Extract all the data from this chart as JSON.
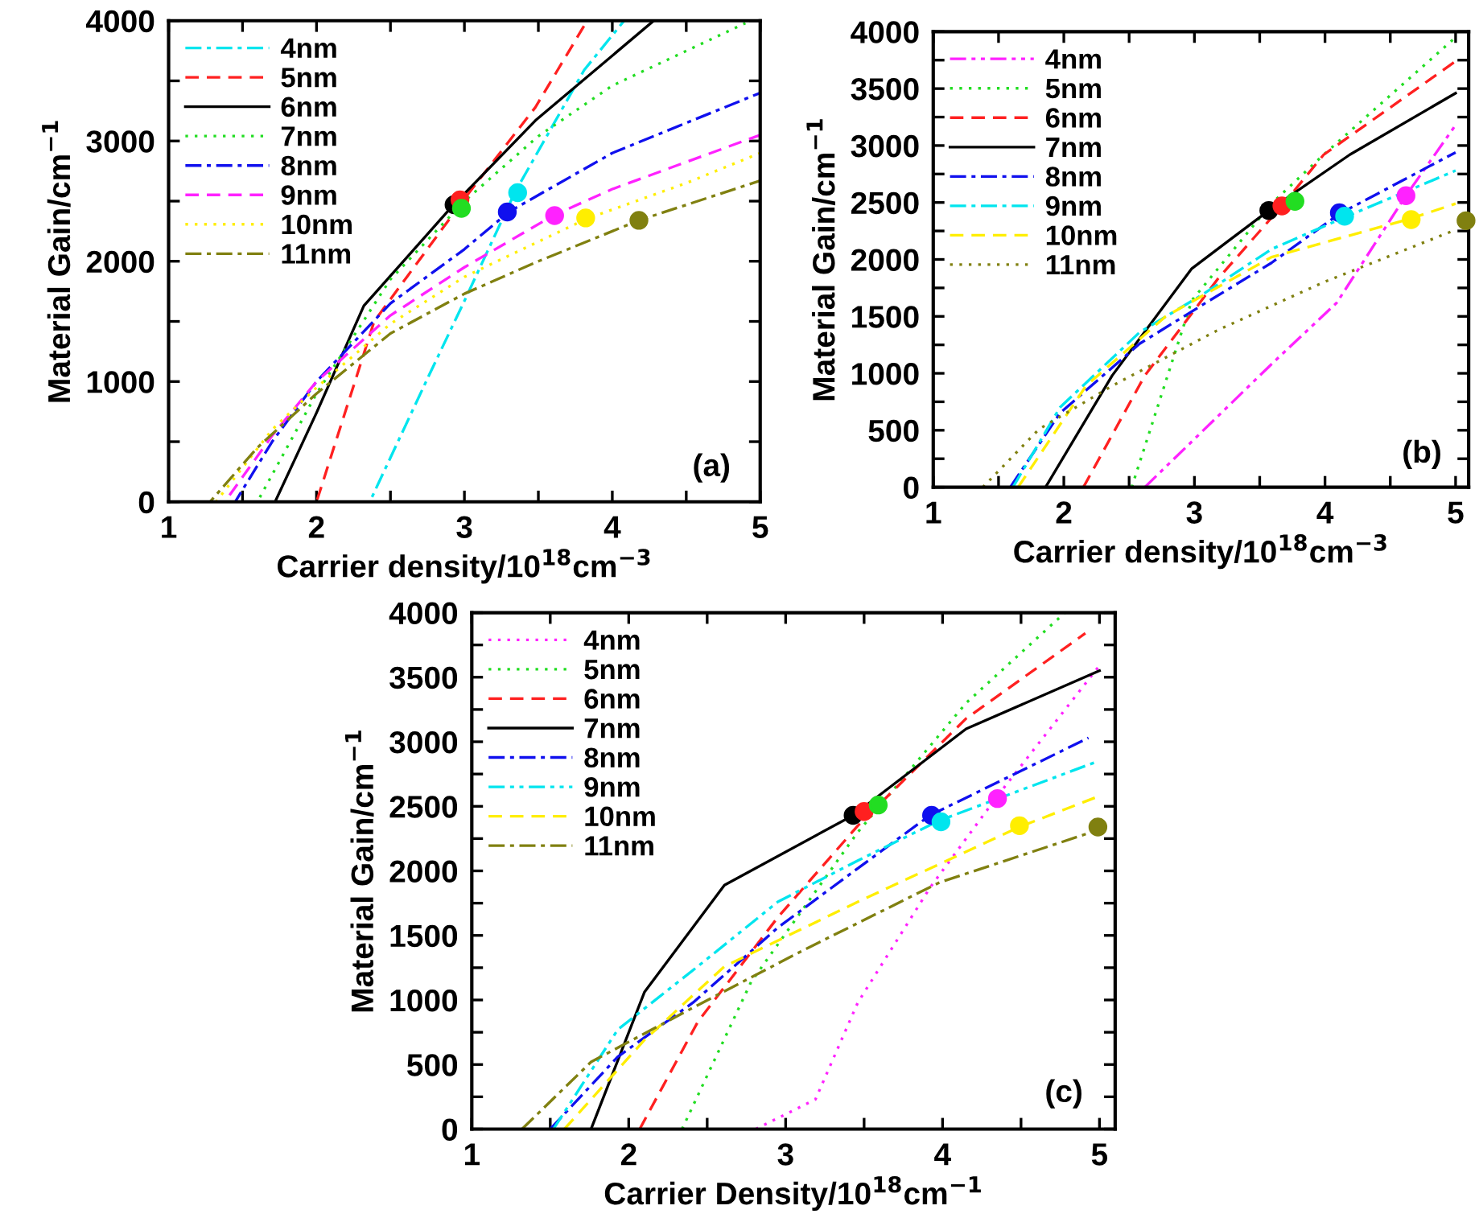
{
  "chart_data": [
    {
      "type": "line",
      "xlabel": "Carrier density/10$^{18}$cm$^{−3}$",
      "ylabel": "Material Gain/cm$^{−1}$",
      "annotations": [
        "(a)"
      ],
      "xlim": [
        1,
        5
      ],
      "ylim": [
        0,
        4000
      ],
      "xticks": [
        1,
        {
          "value": 1.5,
          "label": null
        },
        2,
        {
          "value": 2.5,
          "label": null
        },
        3,
        {
          "value": 3.5,
          "label": null
        },
        4,
        {
          "value": 4.5,
          "label": null
        },
        5
      ],
      "yticks": [
        0,
        {
          "value": 500,
          "label": null
        },
        1000,
        {
          "value": 1500,
          "label": null
        },
        2000,
        {
          "value": 2500,
          "label": null
        },
        3000,
        {
          "value": 3500,
          "label": null
        },
        4000
      ],
      "legend": "top left",
      "grid": false,
      "series": [
        {
          "name": "4nm",
          "color": "#00e5ee",
          "line_style": "dashdot",
          "x": [
            1,
            2.36,
            2.76,
            3.0,
            3.34,
            3.81,
            4.08
          ],
          "values": [
            0,
            0,
            1050,
            1670,
            2570,
            3590,
            4000
          ]
        },
        {
          "name": "5nm",
          "color": "#ff2020",
          "line_style": "dashed",
          "x": [
            1,
            2.0,
            2.39,
            3.0,
            3.48,
            3.83
          ],
          "values": [
            0,
            0,
            1500,
            2520,
            3280,
            4000
          ]
        },
        {
          "name": "6nm",
          "color": "#000000",
          "line_style": "solid",
          "x": [
            1,
            1.72,
            2.0,
            2.32,
            2.92,
            3.48,
            4.28
          ],
          "values": [
            0,
            0,
            740,
            1630,
            2460,
            3170,
            4000
          ]
        },
        {
          "name": "7nm",
          "color": "#22dd22",
          "line_style": "dotted",
          "x": [
            1,
            1.6,
            2.0,
            2.5,
            3.0,
            3.5,
            4.0,
            4.9
          ],
          "values": [
            0,
            0,
            900,
            1850,
            2500,
            3040,
            3460,
            3980
          ]
        },
        {
          "name": "8nm",
          "color": "#1010ee",
          "line_style": "dashdot",
          "x": [
            1,
            1.45,
            1.7,
            2.0,
            2.5,
            3.0,
            3.3,
            4.0,
            5.0
          ],
          "values": [
            0,
            0,
            500,
            1000,
            1650,
            2100,
            2410,
            2900,
            3400
          ]
        },
        {
          "name": "9nm",
          "color": "#ff22ff",
          "line_style": "dashed",
          "x": [
            1,
            1.38,
            1.7,
            2.0,
            2.5,
            3.0,
            3.6,
            4.0,
            5.0
          ],
          "values": [
            0,
            0,
            550,
            1000,
            1550,
            1950,
            2380,
            2600,
            3050
          ]
        },
        {
          "name": "10nm",
          "color": "#ffee00",
          "line_style": "dotted",
          "x": [
            1,
            1.32,
            1.7,
            2.0,
            2.5,
            3.0,
            3.82,
            4.5,
            5.0
          ],
          "values": [
            0,
            0,
            600,
            950,
            1480,
            1870,
            2350,
            2650,
            2900
          ]
        },
        {
          "name": "11nm",
          "color": "#808010",
          "line_style": "dashdot",
          "x": [
            1,
            1.28,
            1.6,
            2.0,
            2.5,
            3.0,
            3.5,
            4.18,
            5.0
          ],
          "values": [
            0,
            0,
            450,
            900,
            1400,
            1730,
            2000,
            2340,
            2670
          ]
        },
        {
          "type": "scatter",
          "marker": "circle",
          "color": "#000000",
          "x": [
            2.93
          ],
          "values": [
            2470
          ]
        },
        {
          "type": "scatter",
          "marker": "circle",
          "color": "#ff2020",
          "x": [
            2.97
          ],
          "values": [
            2510
          ]
        },
        {
          "type": "scatter",
          "marker": "circle",
          "color": "#22dd22",
          "x": [
            2.98
          ],
          "values": [
            2440
          ]
        },
        {
          "type": "scatter",
          "marker": "circle",
          "color": "#00e5ee",
          "x": [
            3.36
          ],
          "values": [
            2570
          ]
        },
        {
          "type": "scatter",
          "marker": "circle",
          "color": "#1010ee",
          "x": [
            3.29
          ],
          "values": [
            2410
          ]
        },
        {
          "type": "scatter",
          "marker": "circle",
          "color": "#ff22ff",
          "x": [
            3.61
          ],
          "values": [
            2380
          ]
        },
        {
          "type": "scatter",
          "marker": "circle",
          "color": "#ffee00",
          "x": [
            3.82
          ],
          "values": [
            2360
          ]
        },
        {
          "type": "scatter",
          "marker": "circle",
          "color": "#808010",
          "x": [
            4.18
          ],
          "values": [
            2340
          ]
        }
      ]
    },
    {
      "type": "line",
      "xlabel": "Carrier density/10$^{18}$cm$^{−3}$",
      "ylabel": "Material Gain/cm$^{−1}$",
      "annotations": [
        "(b)"
      ],
      "xlim": [
        1,
        5.1
      ],
      "ylim": [
        0,
        4000
      ],
      "xticks": [
        1,
        {
          "value": 1.5,
          "label": null
        },
        2,
        {
          "value": 2.5,
          "label": null
        },
        3,
        {
          "value": 3.5,
          "label": null
        },
        4,
        {
          "value": 4.5,
          "label": null
        },
        5
      ],
      "yticks": [
        0,
        {
          "value": 250,
          "label": null
        },
        500,
        {
          "value": 750,
          "label": null
        },
        1000,
        {
          "value": 1250,
          "label": null
        },
        1500,
        {
          "value": 1750,
          "label": null
        },
        2000,
        {
          "value": 2250,
          "label": null
        },
        2500,
        {
          "value": 2750,
          "label": null
        },
        3000,
        {
          "value": 3250,
          "label": null
        },
        3500,
        {
          "value": 3750,
          "label": null
        },
        4000
      ],
      "legend": "top left",
      "grid": false,
      "series": [
        {
          "name": "4nm",
          "color": "#ff22ff",
          "line_style": "dashdotdot",
          "x": [
            2.62,
            3.59,
            4.09,
            4.62,
            5.0
          ],
          "values": [
            0,
            1080,
            1620,
            2560,
            3180
          ]
        },
        {
          "name": "5nm",
          "color": "#22dd22",
          "line_style": "dotted",
          "x": [
            2.52,
            2.98,
            3.59,
            3.99,
            5.0
          ],
          "values": [
            0,
            1640,
            2490,
            2920,
            3950
          ]
        },
        {
          "name": "6nm",
          "color": "#ff2020",
          "line_style": "dashed",
          "x": [
            2.15,
            2.62,
            3.18,
            3.67,
            3.99,
            5.0
          ],
          "values": [
            0,
            980,
            1830,
            2470,
            2920,
            3740
          ]
        },
        {
          "name": "7nm",
          "color": "#000000",
          "line_style": "solid",
          "x": [
            1.86,
            2.37,
            2.98,
            3.57,
            4.19,
            5.0
          ],
          "values": [
            0,
            980,
            1920,
            2430,
            2920,
            3460
          ]
        },
        {
          "name": "8nm",
          "color": "#1010ee",
          "line_style": "dashdot",
          "x": [
            1.59,
            1.97,
            2.58,
            3.06,
            3.59,
            4.11,
            5.0
          ],
          "values": [
            0,
            650,
            1260,
            1600,
            1970,
            2400,
            2940
          ]
        },
        {
          "name": "9nm",
          "color": "#00e5ee",
          "line_style": "dashdot",
          "x": [
            1.61,
            1.97,
            2.58,
            3.06,
            3.59,
            4.15,
            5.0
          ],
          "values": [
            0,
            700,
            1360,
            1690,
            2090,
            2370,
            2780
          ]
        },
        {
          "name": "10nm",
          "color": "#ffee00",
          "line_style": "dashed",
          "x": [
            1.65,
            2.17,
            2.78,
            3.59,
            4.66,
            5.0
          ],
          "values": [
            0,
            890,
            1500,
            2020,
            2360,
            2490
          ]
        },
        {
          "name": "11nm",
          "color": "#808010",
          "line_style": "dotted",
          "x": [
            1.38,
            1.81,
            2.37,
            3.18,
            3.99,
            5.0
          ],
          "values": [
            0,
            510,
            890,
            1380,
            1800,
            2260
          ]
        },
        {
          "type": "scatter",
          "marker": "circle",
          "color": "#000000",
          "x": [
            3.57
          ],
          "values": [
            2430
          ]
        },
        {
          "type": "scatter",
          "marker": "circle",
          "color": "#ff2020",
          "x": [
            3.67
          ],
          "values": [
            2470
          ]
        },
        {
          "type": "scatter",
          "marker": "circle",
          "color": "#22dd22",
          "x": [
            3.77
          ],
          "values": [
            2510
          ]
        },
        {
          "type": "scatter",
          "marker": "circle",
          "color": "#1010ee",
          "x": [
            4.11
          ],
          "values": [
            2410
          ]
        },
        {
          "type": "scatter",
          "marker": "circle",
          "color": "#00e5ee",
          "x": [
            4.15
          ],
          "values": [
            2380
          ]
        },
        {
          "type": "scatter",
          "marker": "circle",
          "color": "#ff22ff",
          "x": [
            4.62
          ],
          "values": [
            2560
          ]
        },
        {
          "type": "scatter",
          "marker": "circle",
          "color": "#ffee00",
          "x": [
            4.66
          ],
          "values": [
            2350
          ]
        },
        {
          "type": "scatter",
          "marker": "circle",
          "color": "#808010",
          "x": [
            5.08
          ],
          "values": [
            2340
          ]
        }
      ]
    },
    {
      "type": "line",
      "xlabel": "Carrier Density/10$^{18}$cm$^{−1}$",
      "ylabel": "Material Gain/cm$^{−1}$",
      "annotations": [
        "(c)"
      ],
      "xlim": [
        1,
        5.1
      ],
      "ylim": [
        0,
        4000
      ],
      "xticks": [
        1,
        {
          "value": 1.5,
          "label": null
        },
        2,
        {
          "value": 2.5,
          "label": null
        },
        3,
        {
          "value": 3.5,
          "label": null
        },
        4,
        {
          "value": 4.5,
          "label": null
        },
        5
      ],
      "yticks": [
        0,
        {
          "value": 250,
          "label": null
        },
        500,
        {
          "value": 750,
          "label": null
        },
        1000,
        {
          "value": 1250,
          "label": null
        },
        1500,
        {
          "value": 1750,
          "label": null
        },
        2000,
        {
          "value": 2250,
          "label": null
        },
        2500,
        {
          "value": 2750,
          "label": null
        },
        3000,
        {
          "value": 3250,
          "label": null
        },
        3500,
        {
          "value": 3750,
          "label": null
        },
        4000
      ],
      "legend": "top left",
      "grid": false,
      "series": [
        {
          "name": "4nm",
          "color": "#ff22ff",
          "line_style": "dotted",
          "x": [
            2.81,
            3.19,
            3.46,
            3.92,
            4.35,
            5.0
          ],
          "values": [
            0,
            230,
            980,
            1870,
            2580,
            3590
          ]
        },
        {
          "name": "5nm",
          "color": "#22dd22",
          "line_style": "dotted",
          "x": [
            2.34,
            2.78,
            3.46,
            4.15,
            4.78
          ],
          "values": [
            0,
            1140,
            2300,
            3300,
            4000
          ]
        },
        {
          "name": "6nm",
          "color": "#ff2020",
          "line_style": "dashed",
          "x": [
            2.07,
            2.44,
            2.95,
            3.46,
            4.15,
            4.91
          ],
          "values": [
            0,
            830,
            1640,
            2350,
            3180,
            3840
          ]
        },
        {
          "name": "7nm",
          "color": "#000000",
          "line_style": "solid",
          "x": [
            1.76,
            2.1,
            2.61,
            3.43,
            4.15,
            5.0
          ],
          "values": [
            0,
            1060,
            1890,
            2430,
            3100,
            3550
          ]
        },
        {
          "name": "8nm",
          "color": "#1010ee",
          "line_style": "dashdot",
          "x": [
            1.5,
            1.93,
            2.41,
            2.95,
            3.46,
            3.92,
            4.93
          ],
          "values": [
            0,
            560,
            980,
            1560,
            2020,
            2430,
            3030
          ]
        },
        {
          "name": "9nm",
          "color": "#00e5ee",
          "line_style": "dashdotdot",
          "x": [
            1.52,
            1.93,
            2.44,
            2.95,
            3.46,
            3.98,
            4.97
          ],
          "values": [
            0,
            770,
            1260,
            1760,
            2080,
            2390,
            2840
          ]
        },
        {
          "name": "10nm",
          "color": "#ffee00",
          "line_style": "dashed",
          "x": [
            1.59,
            2.1,
            2.61,
            3.46,
            4.49,
            5.0
          ],
          "values": [
            0,
            690,
            1260,
            1760,
            2340,
            2580
          ]
        },
        {
          "name": "11nm",
          "color": "#808010",
          "line_style": "dashdot",
          "x": [
            1.32,
            1.76,
            2.44,
            3.12,
            3.98,
            5.0
          ],
          "values": [
            0,
            520,
            960,
            1390,
            1910,
            2320
          ]
        },
        {
          "type": "scatter",
          "marker": "circle",
          "color": "#000000",
          "x": [
            3.43
          ],
          "values": [
            2430
          ]
        },
        {
          "type": "scatter",
          "marker": "circle",
          "color": "#ff2020",
          "x": [
            3.5
          ],
          "values": [
            2460
          ]
        },
        {
          "type": "scatter",
          "marker": "circle",
          "color": "#22dd22",
          "x": [
            3.59
          ],
          "values": [
            2510
          ]
        },
        {
          "type": "scatter",
          "marker": "circle",
          "color": "#1010ee",
          "x": [
            3.93
          ],
          "values": [
            2430
          ]
        },
        {
          "type": "scatter",
          "marker": "circle",
          "color": "#00e5ee",
          "x": [
            3.99
          ],
          "values": [
            2380
          ]
        },
        {
          "type": "scatter",
          "marker": "circle",
          "color": "#ff22ff",
          "x": [
            4.35
          ],
          "values": [
            2560
          ]
        },
        {
          "type": "scatter",
          "marker": "circle",
          "color": "#ffee00",
          "x": [
            4.49
          ],
          "values": [
            2350
          ]
        },
        {
          "type": "scatter",
          "marker": "circle",
          "color": "#808010",
          "x": [
            4.99
          ],
          "values": [
            2340
          ]
        }
      ]
    }
  ]
}
